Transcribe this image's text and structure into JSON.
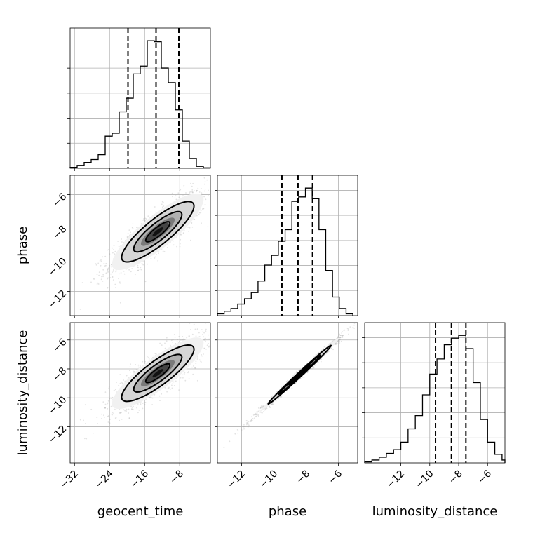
{
  "chart_data": {
    "type": "corner",
    "parameters": [
      "geocent_time",
      "phase",
      "luminosity_distance"
    ],
    "grid": true,
    "ranges": {
      "geocent_time": [
        -33,
        -1
      ],
      "phase": [
        -13.5,
        -4.8
      ],
      "luminosity_distance": [
        -14.5,
        -4.8
      ]
    },
    "ticks": {
      "geocent_time": [
        -32,
        -24,
        -16,
        -8
      ],
      "phase": [
        -12,
        -10,
        -8,
        -6
      ],
      "luminosity_distance": [
        -12,
        -10,
        -8,
        -6
      ]
    },
    "y_ticks": {
      "phase": [
        -12,
        -10,
        -8,
        -6
      ],
      "luminosity_distance": [
        -12,
        -10,
        -8,
        -6
      ]
    },
    "tick_labels": {
      "geocent_time": [
        "−32",
        "−24",
        "−16",
        "−8"
      ],
      "phase": [
        "−12",
        "−10",
        "−8",
        "−6"
      ],
      "luminosity_distance": [
        "−12",
        "−10",
        "−8",
        "−6"
      ]
    },
    "y_tick_labels": {
      "phase": [
        "−12",
        "−10",
        "−8",
        "−6"
      ],
      "luminosity_distance": [
        "−12",
        "−10",
        "−8",
        "−6"
      ]
    },
    "histograms": {
      "geocent_time": {
        "edges": [
          -33,
          -31.4,
          -29.8,
          -28.2,
          -26.6,
          -25,
          -23.4,
          -21.8,
          -20.2,
          -18.6,
          -17,
          -15.4,
          -13.8,
          -12.2,
          -10.6,
          -9,
          -7.4,
          -5.8,
          -4.2,
          -2.6,
          -1
        ],
        "counts": [
          1,
          3,
          6,
          9,
          14,
          33,
          36,
          58,
          72,
          97,
          105,
          131,
          130,
          103,
          88,
          60,
          28,
          10,
          2,
          0.5
        ],
        "quantiles": [
          -19.8,
          -13.4,
          -8.2
        ]
      },
      "phase": {
        "edges": [
          -13.5,
          -13.08,
          -12.66,
          -12.24,
          -11.82,
          -11.4,
          -10.98,
          -10.56,
          -10.14,
          -9.72,
          -9.3,
          -8.88,
          -8.46,
          -8.04,
          -7.62,
          -7.2,
          -6.78,
          -6.36,
          -5.94,
          -5.52,
          -5.1
        ],
        "counts": [
          2,
          5,
          8,
          13,
          19,
          26,
          39,
          57,
          68,
          84,
          97,
          129,
          134,
          144,
          132,
          97,
          51,
          21,
          8,
          2
        ],
        "quantiles": [
          -9.5,
          -8.5,
          -7.6
        ]
      },
      "luminosity_distance": {
        "edges": [
          -14.5,
          -14.0,
          -13.5,
          -13.0,
          -12.5,
          -12.0,
          -11.5,
          -11.0,
          -10.5,
          -10.0,
          -9.5,
          -9.0,
          -8.5,
          -8.0,
          -7.5,
          -7.0,
          -6.5,
          -6.0,
          -5.5,
          -5.0,
          -4.8
        ],
        "counts": [
          1,
          3,
          6,
          10,
          14,
          22,
          36,
          50,
          72,
          94,
          110,
          125,
          132,
          135,
          121,
          85,
          46,
          22,
          9,
          3
        ],
        "quantiles": [
          -9.6,
          -8.5,
          -7.5
        ]
      }
    },
    "pairs": [
      {
        "x": "geocent_time",
        "y": "phase",
        "center": [
          -13.0,
          -8.3
        ],
        "sigma": [
          5.5,
          1.25
        ],
        "rho": 0.85,
        "levels": [
          0.5,
          1.0,
          1.5
        ]
      },
      {
        "x": "geocent_time",
        "y": "luminosity_distance",
        "center": [
          -13.0,
          -8.3
        ],
        "sigma": [
          5.5,
          1.3
        ],
        "rho": 0.85,
        "levels": [
          0.5,
          1.0,
          1.5
        ]
      },
      {
        "x": "phase",
        "y": "luminosity_distance",
        "center": [
          -8.4,
          -8.4
        ],
        "sigma": [
          1.3,
          1.35
        ],
        "rho": 0.995,
        "levels": [
          0.5,
          1.0,
          1.5
        ]
      }
    ]
  }
}
